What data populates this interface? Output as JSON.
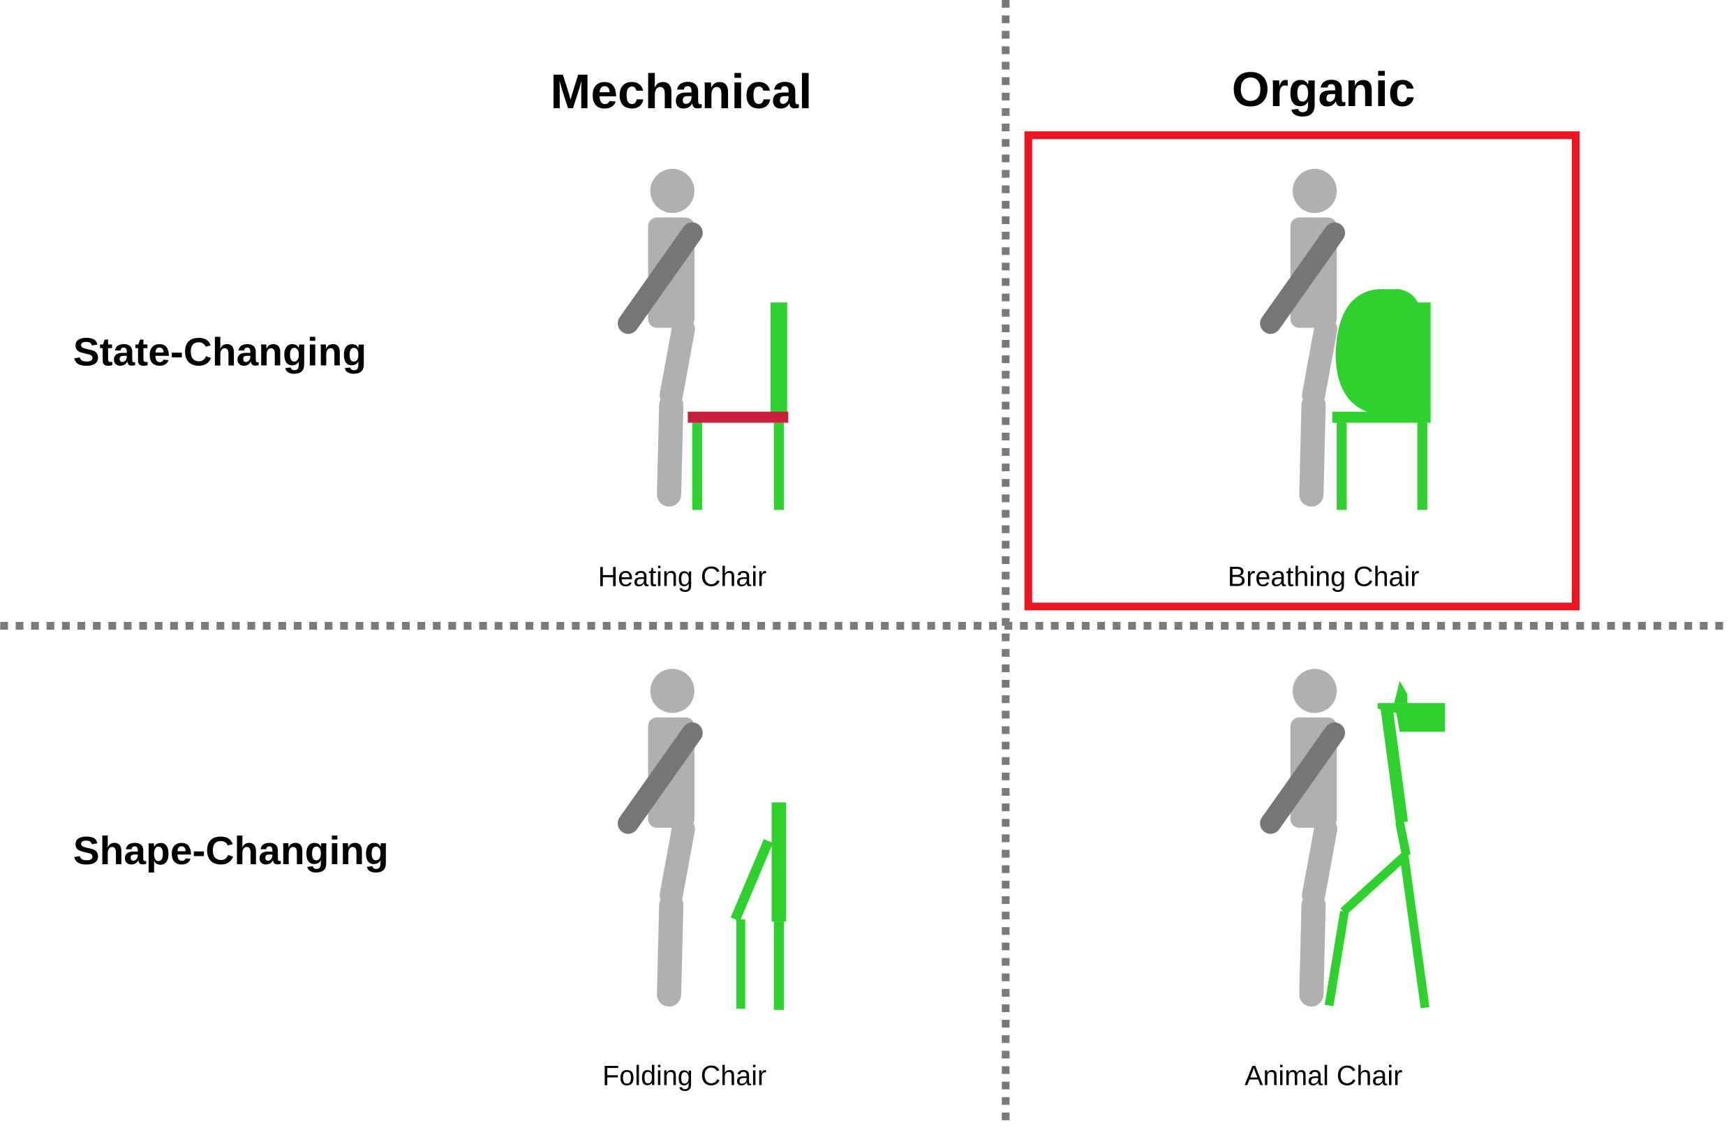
{
  "columns": {
    "mechanical": "Mechanical",
    "organic": "Organic"
  },
  "rows": {
    "state_changing": "State-Changing",
    "shape_changing": "Shape-Changing"
  },
  "cells": {
    "heating": "Heating Chair",
    "breathing": "Breathing Chair",
    "folding": "Folding Chair",
    "animal": "Animal Chair"
  },
  "highlighted_cell": "Breathing Chair",
  "colors": {
    "chair": "#2ed12e",
    "heated_seat": "#c8203c",
    "figure_body": "#b0b0b0",
    "figure_arm": "#767676",
    "divider": "#7a7a7a",
    "highlight_frame": "#ee1520"
  }
}
